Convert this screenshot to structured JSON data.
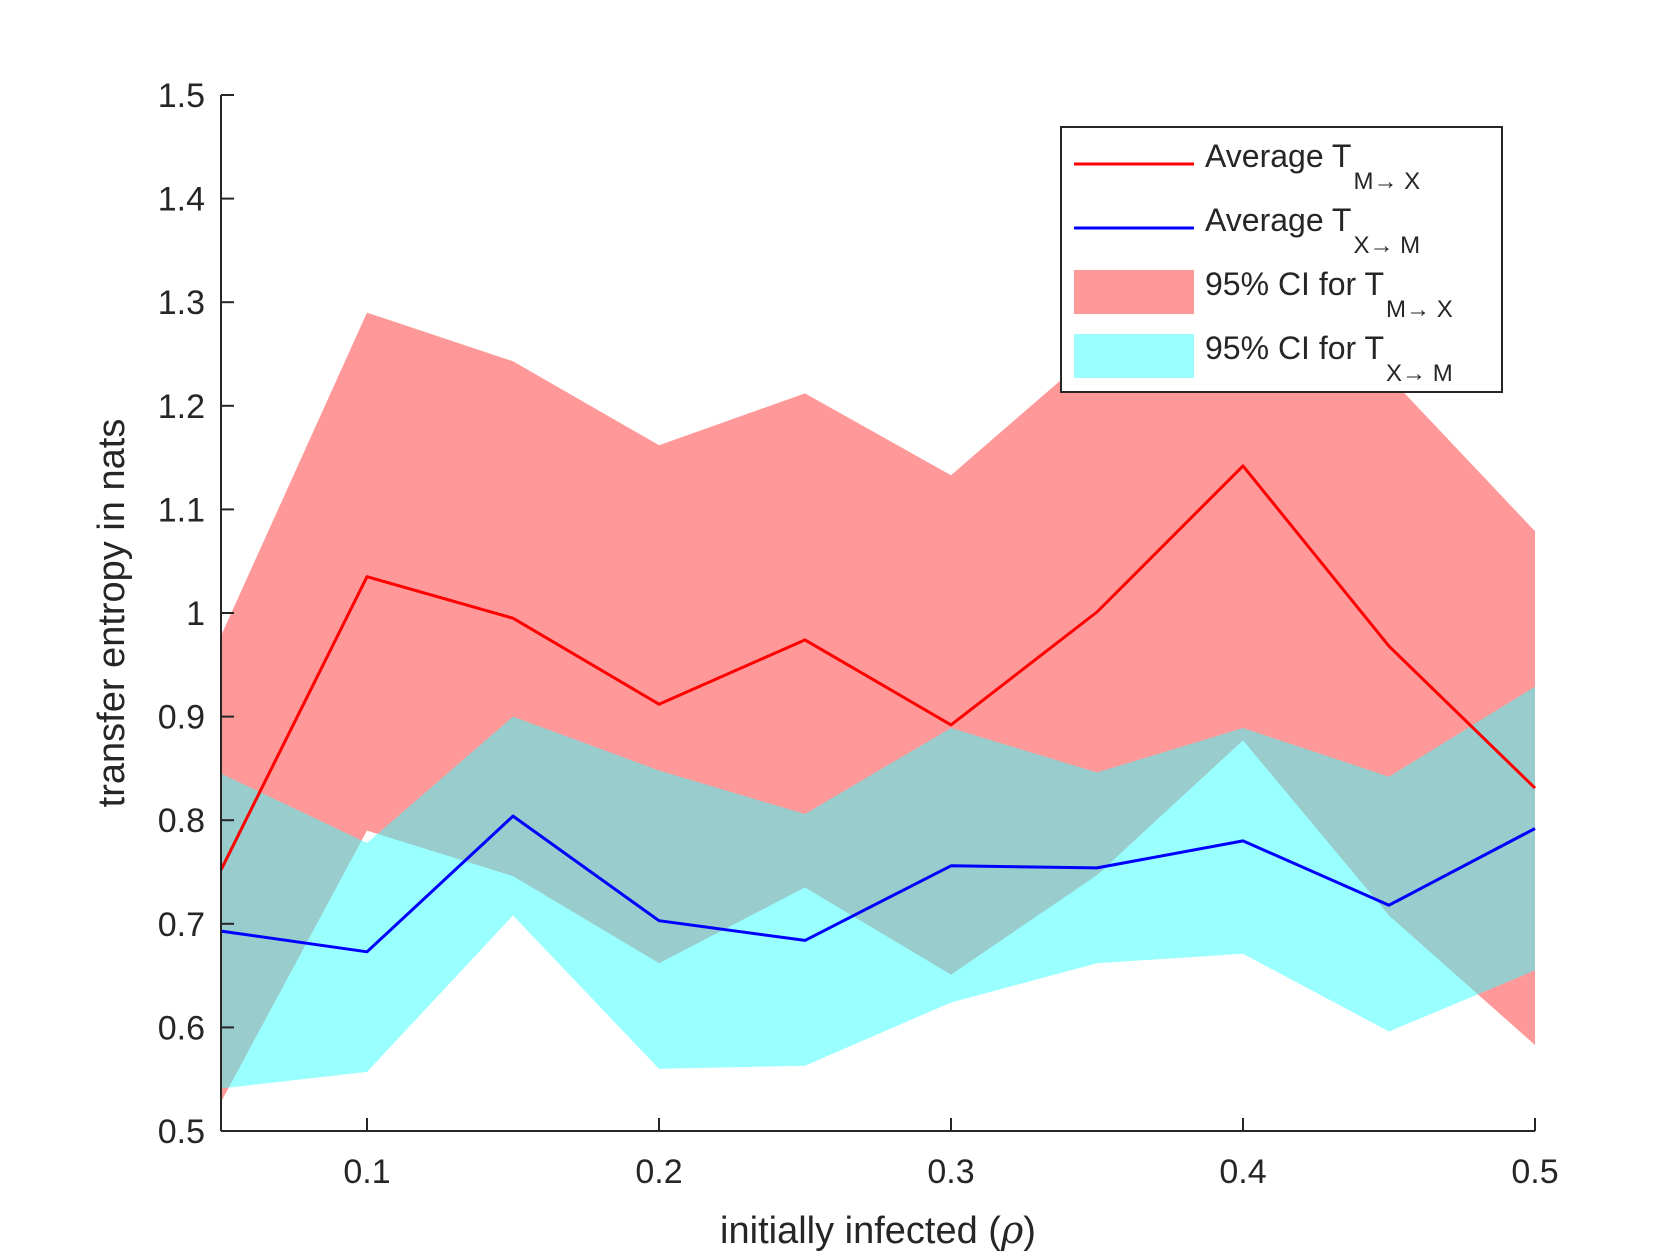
{
  "chart_data": {
    "type": "area",
    "title": "",
    "xlabel": "initially infected (ρ)",
    "xlabel_parts": {
      "main": "initially infected (",
      "symbol": "ρ",
      "close": ")"
    },
    "ylabel": "transfer entropy in nats",
    "xlim": [
      0.05,
      0.5
    ],
    "ylim": [
      0.5,
      1.5
    ],
    "xticks": [
      0.1,
      0.2,
      0.3,
      0.4,
      0.5
    ],
    "xtick_labels": [
      "0.1",
      "0.2",
      "0.3",
      "0.4",
      "0.5"
    ],
    "yticks": [
      0.5,
      0.6,
      0.7,
      0.8,
      0.9,
      1.0,
      1.1,
      1.2,
      1.3,
      1.4,
      1.5
    ],
    "ytick_labels": [
      "0.5",
      "0.6",
      "0.7",
      "0.8",
      "0.9",
      "1",
      "1.1",
      "1.2",
      "1.3",
      "1.4",
      "1.5"
    ],
    "grid": false,
    "legend_position": "top-right",
    "x": [
      0.05,
      0.1,
      0.15,
      0.2,
      0.25,
      0.3,
      0.35,
      0.4,
      0.45,
      0.5
    ],
    "series": [
      {
        "kind": "line",
        "legend_main": "Average T",
        "legend_sub": "M→ X",
        "color": "#ff0000",
        "values": [
          0.752,
          1.035,
          0.995,
          0.912,
          0.974,
          0.892,
          1.001,
          1.142,
          0.968,
          0.831
        ]
      },
      {
        "kind": "line",
        "legend_main": "Average T",
        "legend_sub": "X→ M",
        "color": "#0000ff",
        "values": [
          0.693,
          0.673,
          0.804,
          0.703,
          0.684,
          0.756,
          0.754,
          0.78,
          0.718,
          0.792
        ]
      },
      {
        "kind": "band",
        "legend_main": "95% CI for T",
        "legend_sub": "M→ X",
        "color": "#ff3333",
        "opacity": 0.5,
        "lower": [
          0.528,
          0.79,
          0.746,
          0.662,
          0.735,
          0.651,
          0.747,
          0.877,
          0.708,
          0.583
        ],
        "upper": [
          0.978,
          1.29,
          1.243,
          1.162,
          1.212,
          1.133,
          1.255,
          1.407,
          1.228,
          1.079
        ]
      },
      {
        "kind": "band",
        "legend_main": "95% CI for T",
        "legend_sub": "X→ M",
        "color": "#33ffff",
        "opacity": 0.5,
        "lower": [
          0.541,
          0.557,
          0.708,
          0.56,
          0.563,
          0.624,
          0.662,
          0.671,
          0.596,
          0.655
        ],
        "upper": [
          0.845,
          0.778,
          0.9,
          0.848,
          0.806,
          0.889,
          0.846,
          0.889,
          0.842,
          0.929
        ]
      }
    ]
  }
}
